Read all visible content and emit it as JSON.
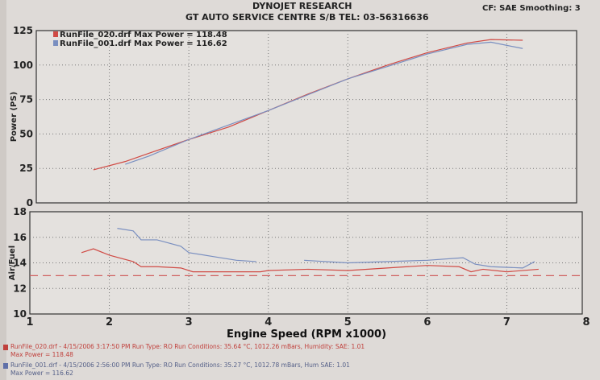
{
  "header": {
    "title": "DYNOJET RESEARCH",
    "subtitle": "GT AUTO SERVICE CENTRE S/B TEL: 03-56316636",
    "settings": "CF: SAE  Smoothing: 3"
  },
  "colors": {
    "run020": "#d04a44",
    "run001": "#7a8fc0",
    "reference": "#d06060"
  },
  "footer": [
    {
      "line1": "RunFile_020.drf - 4/15/2006 3:17:50 PM  Run Type: RO  Run Conditions: 35.64 °C, 1012.26 mBars,  Humidity:      SAE: 1.01",
      "line2": "Max Power = 118.48",
      "color": "#c0403c"
    },
    {
      "line1": "RunFile_001.drf - 4/15/2006 2:56:00 PM  Run Type: RO  Run Conditions: 35.27 °C, 1012.78 mBars,  Hum          SAE: 1.01",
      "line2": "Max Power = 116.62",
      "color": "#556088"
    }
  ],
  "chart_data": [
    {
      "type": "line",
      "ylabel": "Power (PS)",
      "ylim": [
        0,
        125
      ],
      "yticks": [
        0,
        25,
        50,
        75,
        100,
        125
      ],
      "xlim": [
        1,
        8
      ],
      "grid": true,
      "legend": [
        "RunFile_020.drf Max Power = 118.48",
        "RunFile_001.drf Max Power = 116.62"
      ],
      "legend_placement": "top-left",
      "series": [
        {
          "name": "RunFile_020.drf",
          "x": [
            1.8,
            2.2,
            2.5,
            3.0,
            3.5,
            4.0,
            4.5,
            5.0,
            5.5,
            6.0,
            6.5,
            6.8,
            7.2
          ],
          "y": [
            24,
            30,
            36,
            46,
            55,
            67,
            79,
            90,
            100,
            109,
            116,
            118.5,
            118
          ]
        },
        {
          "name": "RunFile_001.drf",
          "x": [
            2.2,
            2.5,
            3.0,
            4.0,
            5.0,
            6.0,
            6.5,
            6.8,
            7.2
          ],
          "y": [
            28,
            34,
            46,
            67,
            90,
            108,
            115,
            116.6,
            112
          ]
        }
      ]
    },
    {
      "type": "line",
      "ylabel": "Air/Fuel",
      "xlabel": "Engine Speed (RPM x1000)",
      "ylim": [
        10,
        18
      ],
      "yticks": [
        10,
        12,
        14,
        16,
        18
      ],
      "xlim": [
        1,
        8
      ],
      "xticks": [
        1,
        2,
        3,
        4,
        5,
        6,
        7,
        8
      ],
      "grid": true,
      "reference_line": 13.0,
      "series": [
        {
          "name": "RunFile_020.drf",
          "x": [
            1.65,
            1.8,
            2.0,
            2.3,
            2.4,
            2.6,
            2.9,
            3.05,
            3.5,
            3.9,
            4.0,
            4.5,
            5.0,
            6.0,
            6.4,
            6.55,
            6.7,
            7.0,
            7.4
          ],
          "y": [
            14.8,
            15.1,
            14.6,
            14.1,
            13.7,
            13.7,
            13.6,
            13.3,
            13.3,
            13.3,
            13.4,
            13.5,
            13.4,
            13.8,
            13.7,
            13.3,
            13.5,
            13.3,
            13.5
          ]
        },
        {
          "name": "RunFile_001.drf",
          "x": [
            2.1,
            2.3,
            2.4,
            2.6,
            2.9,
            3.0,
            3.3,
            3.6,
            3.85
          ],
          "y": [
            16.7,
            16.5,
            15.8,
            15.8,
            15.3,
            14.8,
            14.5,
            14.2,
            14.1
          ]
        },
        {
          "name": "RunFile_001.drf",
          "x": [
            4.45,
            5.0,
            6.0,
            6.45,
            6.6,
            6.8,
            7.2,
            7.35
          ],
          "y": [
            14.2,
            14.0,
            14.2,
            14.4,
            13.9,
            13.7,
            13.6,
            14.1
          ]
        }
      ]
    }
  ]
}
